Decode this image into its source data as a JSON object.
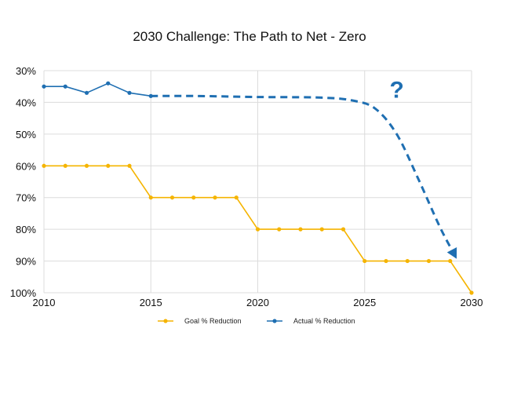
{
  "chart_data": {
    "type": "line",
    "title": "2030 Challenge: The Path to Net - Zero",
    "xlabel": "",
    "ylabel": "",
    "xlim": [
      2010,
      2030
    ],
    "ylim": [
      30,
      100
    ],
    "y_inverted": true,
    "x_ticks": [
      2010,
      2015,
      2020,
      2025,
      2030
    ],
    "y_ticks": [
      30,
      40,
      50,
      60,
      70,
      80,
      90,
      100
    ],
    "y_tick_labels": [
      "30%",
      "40%",
      "50%",
      "60%",
      "70%",
      "80%",
      "90%",
      "100%"
    ],
    "grid": true,
    "legend_position": "bottom",
    "series": [
      {
        "name": "Goal % Reduction",
        "color": "#f5b400",
        "x": [
          2010,
          2011,
          2012,
          2013,
          2014,
          2015,
          2016,
          2017,
          2018,
          2019,
          2020,
          2021,
          2022,
          2023,
          2024,
          2025,
          2026,
          2027,
          2028,
          2029,
          2030
        ],
        "y": [
          60,
          60,
          60,
          60,
          60,
          70,
          70,
          70,
          70,
          70,
          80,
          80,
          80,
          80,
          80,
          90,
          90,
          90,
          90,
          90,
          100
        ]
      },
      {
        "name": "Actual % Reduction",
        "color": "#1f6fb2",
        "x": [
          2010,
          2011,
          2012,
          2013,
          2014,
          2015
        ],
        "y": [
          35,
          35,
          37,
          34,
          37,
          38
        ]
      }
    ],
    "projection": {
      "color": "#1f6fb2",
      "style": "dashed",
      "x": [
        2015,
        2017,
        2020,
        2023,
        2024.5,
        2025.5,
        2026.5,
        2027.5,
        2028.5,
        2029.2
      ],
      "y": [
        38,
        38,
        38.3,
        38.5,
        39.5,
        42,
        50,
        64,
        79,
        88
      ]
    },
    "annotations": [
      {
        "text": "?",
        "x": 2026.5,
        "y": 38.5,
        "color": "#1f6fb2"
      }
    ]
  }
}
